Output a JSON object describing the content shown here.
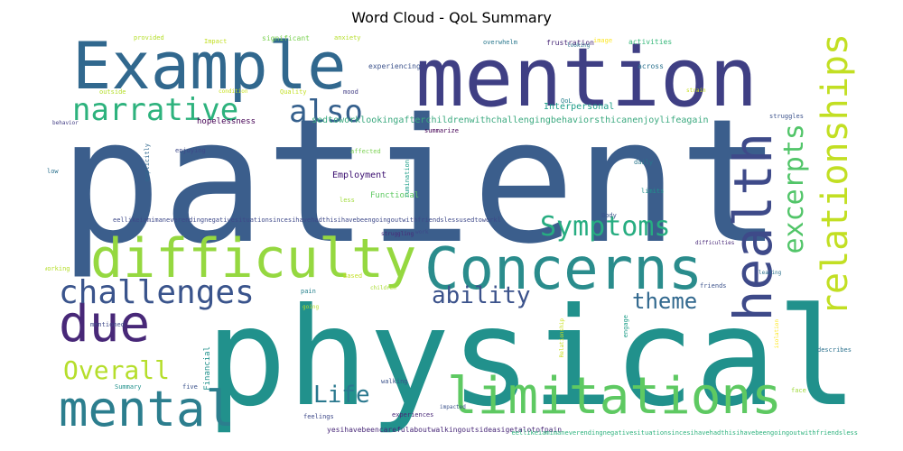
{
  "chart_data": {
    "type": "wordcloud",
    "title": "Word Cloud - QoL Summary",
    "words": [
      {
        "text": "patient",
        "color": "#3b5e8c"
      },
      {
        "text": "physical",
        "color": "#21918c"
      },
      {
        "text": "mention",
        "color": "#3f3f84"
      },
      {
        "text": "Example",
        "color": "#31688e"
      },
      {
        "text": "Concerns",
        "color": "#2a8c8c"
      },
      {
        "text": "difficulty",
        "color": "#95d840"
      },
      {
        "text": "limitations",
        "color": "#5ec962"
      },
      {
        "text": "health",
        "color": "#3e4a89"
      },
      {
        "text": "relationships",
        "color": "#c2df23"
      },
      {
        "text": "mental",
        "color": "#2c7e8e"
      },
      {
        "text": "due",
        "color": "#482878"
      },
      {
        "text": "challenges",
        "color": "#3a548c"
      },
      {
        "text": "narrative",
        "color": "#2db27d"
      },
      {
        "text": "excerpts",
        "color": "#52c569"
      },
      {
        "text": "also",
        "color": "#35608d"
      },
      {
        "text": "Symptoms",
        "color": "#27ad81"
      },
      {
        "text": "Overall",
        "color": "#b5de2b"
      },
      {
        "text": "ability",
        "color": "#3b528b"
      },
      {
        "text": "theme",
        "color": "#31688e"
      },
      {
        "text": "Life",
        "color": "#2a788e"
      },
      {
        "text": "sedtoworklookingafterchildrenwithchallengingbehaviorsthicanenjoylifeagain",
        "color": "#3ba97f"
      },
      {
        "text": "eellikeiamimaneverendingnegativesituationsincesihavehadthisihavebeengoingoutwithfriendslessusedtoworkl",
        "color": "#3e4989"
      },
      {
        "text": "yesihavebeencarefulaboutwalkingoutsideasigetalotofpain",
        "color": "#482878"
      },
      {
        "text": "eellikeiamimaneverendingnegativesituationsincesihavehadthisihavebeengoingoutwithfriendsless",
        "color": "#2db27d"
      },
      {
        "text": "Employment",
        "color": "#3b0f70"
      },
      {
        "text": "Interpersonal",
        "color": "#1f9e89"
      },
      {
        "text": "hopelessness",
        "color": "#440154"
      },
      {
        "text": "Functional",
        "color": "#5ec962"
      },
      {
        "text": "Financial",
        "color": "#21918c"
      },
      {
        "text": "experiencing",
        "color": "#3b528b"
      },
      {
        "text": "significant",
        "color": "#7ad151"
      },
      {
        "text": "provided",
        "color": "#b5de2b"
      },
      {
        "text": "anxiety",
        "color": "#b5de2b"
      },
      {
        "text": "overwhelm",
        "color": "#2a788e"
      },
      {
        "text": "frustration",
        "color": "#482878"
      },
      {
        "text": "activities",
        "color": "#35b779"
      },
      {
        "text": "across",
        "color": "#2c728e"
      },
      {
        "text": "Quality",
        "color": "#c2df23"
      },
      {
        "text": "mood",
        "color": "#433e85"
      },
      {
        "text": "enjoying",
        "color": "#3e4989"
      },
      {
        "text": "affected",
        "color": "#7ad151"
      },
      {
        "text": "summarize",
        "color": "#440154"
      },
      {
        "text": "rumination",
        "color": "#1f9e89"
      },
      {
        "text": "explicitly",
        "color": "#31688e"
      },
      {
        "text": "struggles",
        "color": "#3b528b"
      },
      {
        "text": "daily",
        "color": "#2a788e"
      },
      {
        "text": "less",
        "color": "#9fda3a"
      },
      {
        "text": "limits",
        "color": "#21918c"
      },
      {
        "text": "Body",
        "color": "#3b528b"
      },
      {
        "text": "struggling",
        "color": "#482878"
      },
      {
        "text": "work",
        "color": "#3e4989"
      },
      {
        "text": "difficulties",
        "color": "#482878"
      },
      {
        "text": "leading",
        "color": "#2c728e"
      },
      {
        "text": "friends",
        "color": "#3b528b"
      },
      {
        "text": "engage",
        "color": "#1f9e89"
      },
      {
        "text": "Based",
        "color": "#c2df23"
      },
      {
        "text": "children",
        "color": "#aadc32"
      },
      {
        "text": "pain",
        "color": "#26828e"
      },
      {
        "text": "going",
        "color": "#b5de2b"
      },
      {
        "text": "mentioned",
        "color": "#3e4989"
      },
      {
        "text": "working",
        "color": "#b5de2b"
      },
      {
        "text": "low",
        "color": "#2c728e"
      },
      {
        "text": "behavior",
        "color": "#433e85"
      },
      {
        "text": "outside",
        "color": "#b5de2b"
      },
      {
        "text": "Impact",
        "color": "#c2df23"
      },
      {
        "text": "condition",
        "color": "#c8e020"
      },
      {
        "text": "looking",
        "color": "#2c728e"
      },
      {
        "text": "image",
        "color": "#fde725"
      },
      {
        "text": "QoL",
        "color": "#26828e"
      },
      {
        "text": "strain",
        "color": "#c8e020"
      },
      {
        "text": "walking",
        "color": "#3b528b"
      },
      {
        "text": "experiences",
        "color": "#482878"
      },
      {
        "text": "impacted",
        "color": "#3b528b"
      },
      {
        "text": "feelings",
        "color": "#3e4989"
      },
      {
        "text": "Summary",
        "color": "#21918c"
      },
      {
        "text": "five",
        "color": "#3b528b"
      },
      {
        "text": "describes",
        "color": "#2c728e"
      },
      {
        "text": "face",
        "color": "#9fda3a"
      },
      {
        "text": "Relationship",
        "color": "#c8e020"
      },
      {
        "text": "isolation",
        "color": "#fde725"
      }
    ]
  }
}
